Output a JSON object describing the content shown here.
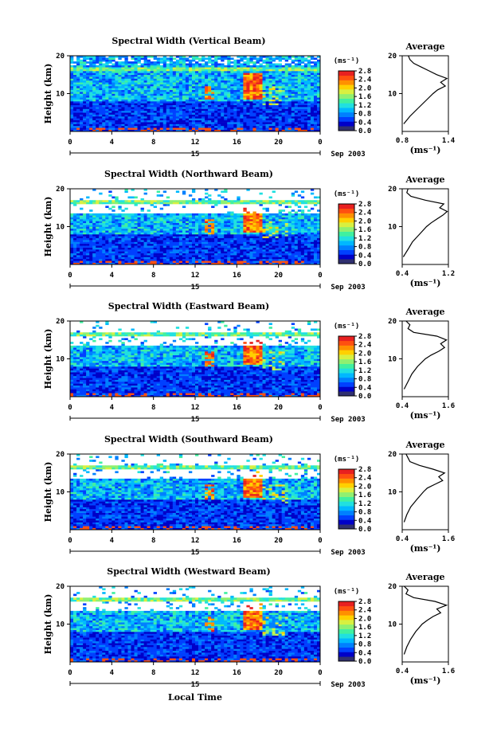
{
  "figure": {
    "xlabel": "Local Time",
    "date_label": "Sep 2003",
    "day_label": "15",
    "unit_label": "(ms⁻¹)",
    "avg_title": "Average",
    "avg_xlabel": "(ms⁻¹)"
  },
  "colorbar": {
    "ticks": [
      "0.0",
      "0.4",
      "0.8",
      "1.2",
      "1.6",
      "2.0",
      "2.4",
      "2.8"
    ],
    "colors": [
      "#303070",
      "#0000c8",
      "#0040ff",
      "#0080ff",
      "#00b8ff",
      "#20e0e0",
      "#40f0a0",
      "#90f070",
      "#d8f040",
      "#ffd000",
      "#ff9000",
      "#ff5010",
      "#e82020"
    ]
  },
  "chart_data": [
    {
      "type": "heatmap",
      "title": "Spectral Width (Vertical Beam)",
      "ylabel": "Height (km)",
      "xlim": [
        0,
        24
      ],
      "ylim": [
        0,
        20
      ],
      "xticks": [
        "0",
        "4",
        "8",
        "12",
        "16",
        "20",
        "0"
      ],
      "yticks": [
        "10",
        "20"
      ],
      "zlim": [
        0.0,
        3.0
      ],
      "avg_profile": {
        "xlim": [
          0.8,
          1.4
        ],
        "xticks": [
          "0.8",
          "1.4"
        ],
        "yticks": [
          "10",
          "20"
        ],
        "height_km": [
          2,
          4,
          6,
          8,
          10,
          11,
          12,
          13,
          14,
          15,
          16,
          17,
          18,
          19,
          20
        ],
        "width": [
          0.82,
          0.9,
          1.0,
          1.1,
          1.2,
          1.26,
          1.36,
          1.3,
          1.38,
          1.25,
          1.15,
          1.05,
          0.95,
          0.9,
          0.88
        ]
      }
    },
    {
      "type": "heatmap",
      "title": "Spectral Width (Northward Beam)",
      "ylabel": "Height (km)",
      "xlim": [
        0,
        24
      ],
      "ylim": [
        0,
        20
      ],
      "xticks": [
        "0",
        "4",
        "8",
        "12",
        "16",
        "20",
        "0"
      ],
      "yticks": [
        "10",
        "20"
      ],
      "zlim": [
        0.0,
        3.0
      ],
      "avg_profile": {
        "xlim": [
          0.4,
          1.2
        ],
        "xticks": [
          "0.4",
          "1.2"
        ],
        "yticks": [
          "10",
          "20"
        ],
        "height_km": [
          2,
          4,
          6,
          8,
          10,
          11,
          12,
          13,
          14,
          15,
          16,
          17,
          18,
          19,
          20
        ],
        "width": [
          0.42,
          0.5,
          0.58,
          0.7,
          0.82,
          0.9,
          1.0,
          1.1,
          1.18,
          1.05,
          1.12,
          0.8,
          0.55,
          0.48,
          0.5
        ]
      }
    },
    {
      "type": "heatmap",
      "title": "Spectral Width (Eastward Beam)",
      "ylabel": "Height (km)",
      "xlim": [
        0,
        24
      ],
      "ylim": [
        0,
        20
      ],
      "xticks": [
        "0",
        "4",
        "8",
        "12",
        "16",
        "20",
        "0"
      ],
      "yticks": [
        "10",
        "20"
      ],
      "zlim": [
        0.0,
        3.0
      ],
      "avg_profile": {
        "xlim": [
          0.4,
          1.6
        ],
        "xticks": [
          "0.4",
          "1.6"
        ],
        "yticks": [
          "10",
          "20"
        ],
        "height_km": [
          2,
          4,
          6,
          8,
          10,
          11,
          12,
          13,
          14,
          15,
          16,
          17,
          18,
          19,
          20
        ],
        "width": [
          0.45,
          0.55,
          0.65,
          0.8,
          1.0,
          1.15,
          1.35,
          1.5,
          1.4,
          1.55,
          1.3,
          0.7,
          0.55,
          0.6,
          0.5
        ]
      }
    },
    {
      "type": "heatmap",
      "title": "Spectral Width (Southward Beam)",
      "ylabel": "Height (km)",
      "xlim": [
        0,
        24
      ],
      "ylim": [
        0,
        20
      ],
      "xticks": [
        "0",
        "4",
        "8",
        "12",
        "16",
        "20",
        "0"
      ],
      "yticks": [
        "10",
        "20"
      ],
      "zlim": [
        0.0,
        3.0
      ],
      "avg_profile": {
        "xlim": [
          0.4,
          1.6
        ],
        "xticks": [
          "0.4",
          "1.6"
        ],
        "yticks": [
          "10",
          "20"
        ],
        "height_km": [
          2,
          4,
          6,
          8,
          10,
          11,
          12,
          13,
          14,
          15,
          16,
          17,
          18,
          19,
          20
        ],
        "width": [
          0.45,
          0.52,
          0.62,
          0.78,
          0.95,
          1.05,
          1.25,
          1.45,
          1.35,
          1.5,
          1.2,
          0.85,
          0.6,
          0.55,
          0.5
        ]
      }
    },
    {
      "type": "heatmap",
      "title": "Spectral Width (Westward Beam)",
      "ylabel": "Height (km)",
      "xlim": [
        0,
        24
      ],
      "ylim": [
        0,
        20
      ],
      "xticks": [
        "0",
        "4",
        "8",
        "12",
        "16",
        "20",
        "0"
      ],
      "yticks": [
        "10",
        "20"
      ],
      "zlim": [
        0.0,
        3.0
      ],
      "avg_profile": {
        "xlim": [
          0.4,
          1.6
        ],
        "xticks": [
          "0.4",
          "1.6"
        ],
        "yticks": [
          "10",
          "20"
        ],
        "height_km": [
          2,
          4,
          6,
          8,
          10,
          11,
          12,
          13,
          14,
          15,
          16,
          17,
          18,
          19,
          20
        ],
        "width": [
          0.45,
          0.52,
          0.62,
          0.75,
          0.92,
          1.05,
          1.2,
          1.4,
          1.3,
          1.55,
          1.25,
          0.7,
          0.5,
          0.55,
          0.45
        ]
      }
    }
  ]
}
